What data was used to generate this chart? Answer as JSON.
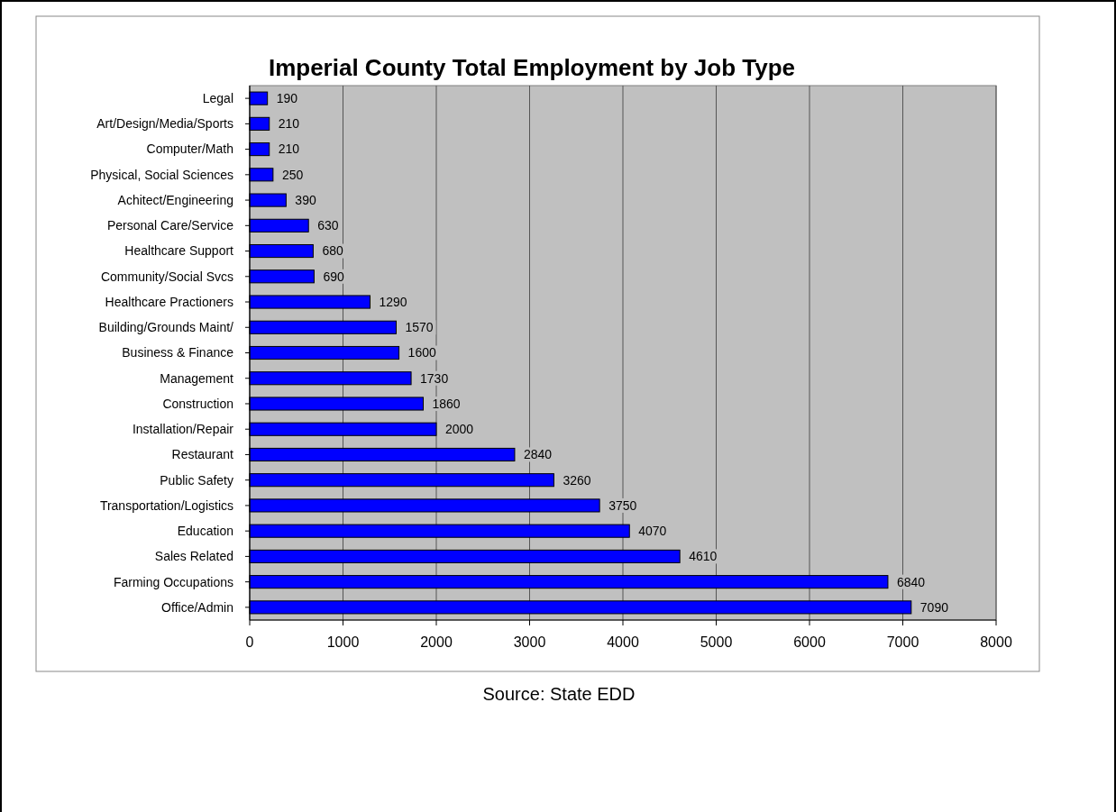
{
  "chart_data": {
    "type": "bar",
    "orientation": "horizontal",
    "title": "Imperial County Total Employment by Job Type",
    "categories": [
      "Legal",
      "Art/Design/Media/Sports",
      "Computer/Math",
      "Physical, Social Sciences",
      "Achitect/Engineering",
      "Personal Care/Service",
      "Healthcare Support",
      "Community/Social Svcs",
      "Healthcare Practioners",
      "Building/Grounds Maint/",
      "Business & Finance",
      "Management",
      "Construction",
      "Installation/Repair",
      "Restaurant",
      "Public Safety",
      "Transportation/Logistics",
      "Education",
      "Sales Related",
      "Farming Occupations",
      "Office/Admin"
    ],
    "values": [
      190,
      210,
      210,
      250,
      390,
      630,
      680,
      690,
      1290,
      1570,
      1600,
      1730,
      1860,
      2000,
      2840,
      3260,
      3750,
      4070,
      4610,
      6840,
      7090
    ],
    "color": "#0000ff",
    "xlim": [
      0,
      8000
    ],
    "xticks": [
      0,
      1000,
      2000,
      3000,
      4000,
      5000,
      6000,
      7000,
      8000
    ],
    "grid": "x",
    "data_labels": true,
    "annotations": [
      "Source: State EDD"
    ]
  }
}
